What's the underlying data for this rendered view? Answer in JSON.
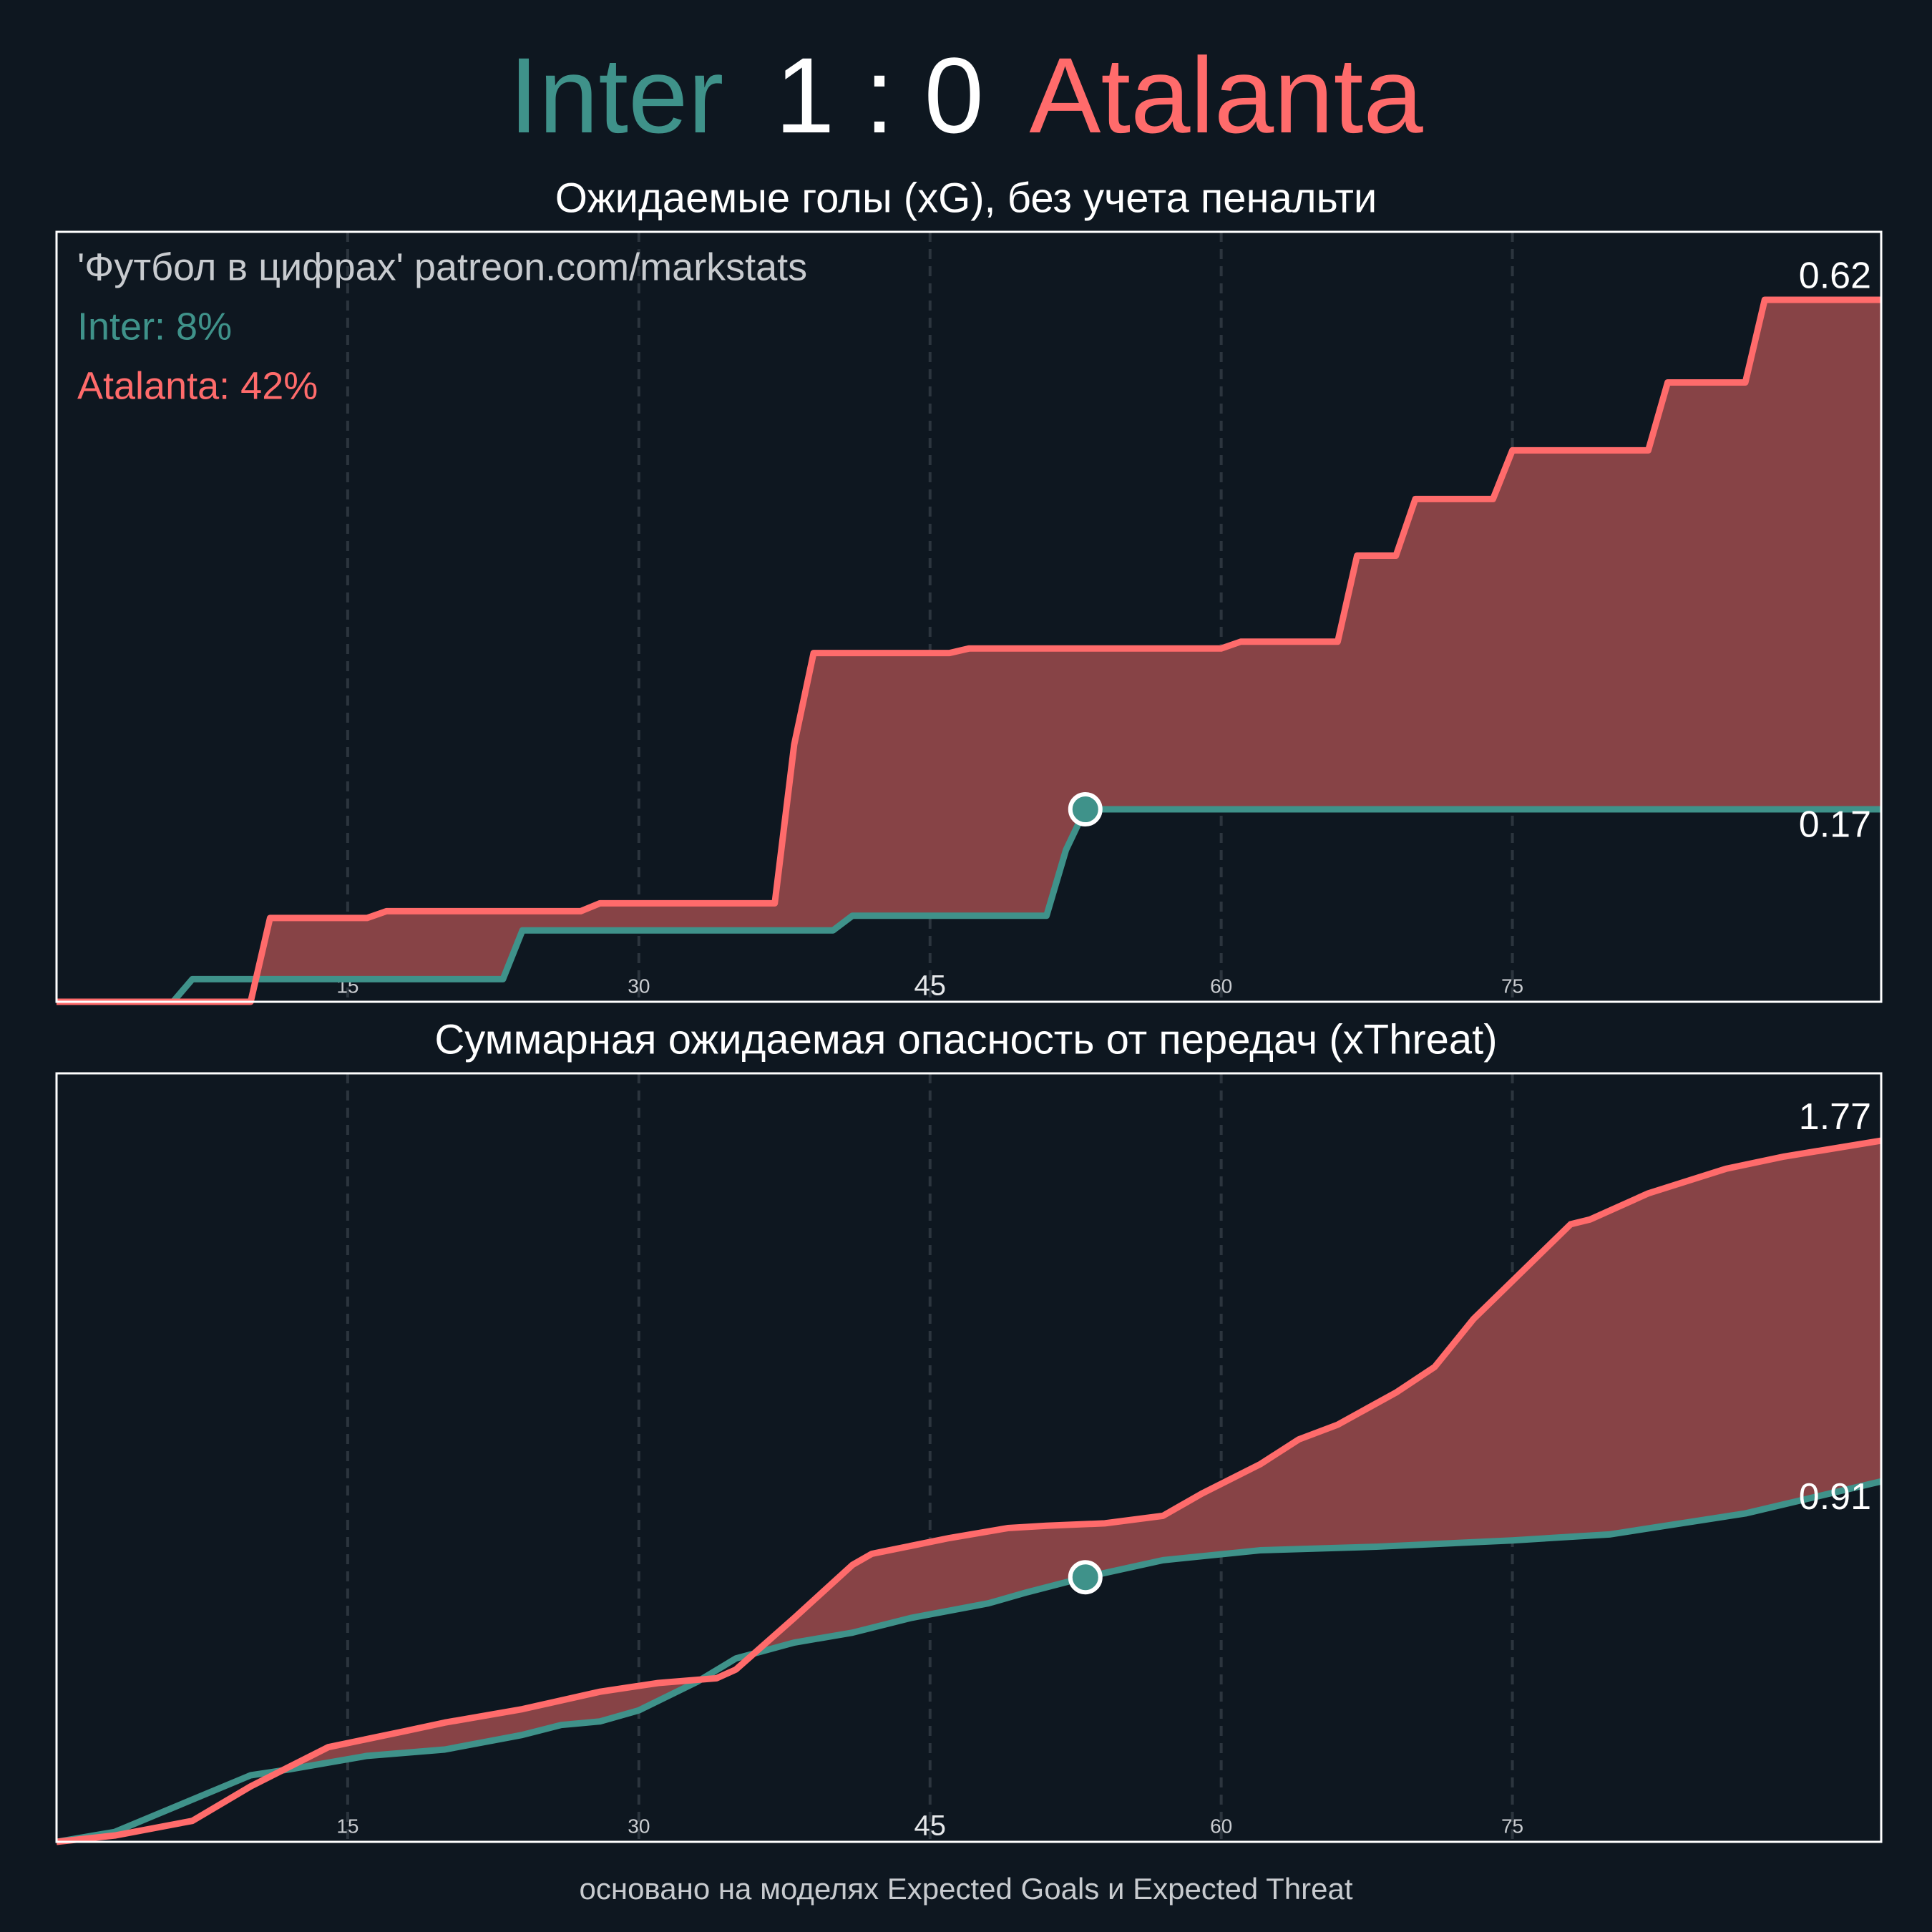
{
  "header": {
    "home": "Inter",
    "score": "1 : 0",
    "away": "Atalanta"
  },
  "footer": "основано на моделях Expected Goals и Expected Threat",
  "chart_data": [
    {
      "type": "line",
      "title": "Ожидаемые голы (xG), без учета пенальти",
      "xlim": [
        0,
        94
      ],
      "ylim": [
        0,
        0.68
      ],
      "xticks": [
        15,
        30,
        45,
        60,
        75
      ],
      "grid": true,
      "annotations": [
        {
          "text": "'Футбол в цифрах' patreon.com/markstats",
          "color": "#c8cbcf"
        },
        {
          "text": "Inter: 8%",
          "color": "#3f928a"
        },
        {
          "text": "Atalanta: 42%",
          "color": "#ff6b6b"
        }
      ],
      "goal_minute": 53,
      "series": [
        {
          "name": "Atalanta",
          "color": "#ff6b6b",
          "x": [
            0,
            10,
            11,
            16,
            17,
            27,
            28,
            37,
            38,
            39,
            46,
            47,
            60,
            61,
            66,
            67,
            69,
            70,
            74,
            75,
            82,
            83,
            87,
            88,
            94
          ],
          "values": [
            0,
            0,
            0.074,
            0.074,
            0.08,
            0.08,
            0.087,
            0.087,
            0.227,
            0.308,
            0.308,
            0.312,
            0.312,
            0.318,
            0.318,
            0.394,
            0.394,
            0.444,
            0.444,
            0.487,
            0.487,
            0.547,
            0.547,
            0.62,
            0.62
          ]
        },
        {
          "name": "Inter",
          "color": "#3f928a",
          "x": [
            0,
            6,
            7,
            23,
            24,
            40,
            41,
            51,
            52,
            53,
            94
          ],
          "values": [
            0,
            0,
            0.02,
            0.02,
            0.063,
            0.063,
            0.076,
            0.076,
            0.134,
            0.17,
            0.17
          ]
        }
      ]
    },
    {
      "type": "line",
      "title": "Суммарная ожидаемая опасность от передач (xThreat)",
      "xlim": [
        0,
        94
      ],
      "ylim": [
        0,
        1.94
      ],
      "xticks": [
        15,
        30,
        45,
        60,
        75
      ],
      "grid": true,
      "goal_minute": 53,
      "series": [
        {
          "name": "Atalanta",
          "color": "#ff6b6b",
          "x": [
            0,
            3,
            7,
            10,
            14,
            18,
            20,
            24,
            28,
            31,
            34,
            35,
            38,
            41,
            42,
            46,
            49,
            51,
            54,
            57,
            59,
            62,
            64,
            66,
            69,
            71,
            73,
            78,
            79,
            82,
            86,
            89,
            94
          ],
          "values": [
            0,
            0.016,
            0.053,
            0.14,
            0.239,
            0.28,
            0.301,
            0.335,
            0.379,
            0.401,
            0.413,
            0.435,
            0.565,
            0.699,
            0.727,
            0.767,
            0.792,
            0.798,
            0.804,
            0.823,
            0.879,
            0.953,
            1.016,
            1.053,
            1.134,
            1.199,
            1.32,
            1.559,
            1.571,
            1.637,
            1.699,
            1.73,
            1.77
          ]
        },
        {
          "name": "Inter",
          "color": "#3f928a",
          "x": [
            0,
            3,
            10,
            12,
            16,
            20,
            24,
            26,
            28,
            30,
            33,
            35,
            38,
            41,
            44,
            48,
            50,
            53,
            57,
            62,
            68,
            75,
            80,
            87,
            94
          ],
          "values": [
            0,
            0.025,
            0.168,
            0.183,
            0.217,
            0.233,
            0.27,
            0.295,
            0.304,
            0.332,
            0.404,
            0.463,
            0.503,
            0.528,
            0.565,
            0.602,
            0.63,
            0.668,
            0.711,
            0.736,
            0.745,
            0.761,
            0.776,
            0.829,
            0.91
          ]
        }
      ]
    }
  ]
}
